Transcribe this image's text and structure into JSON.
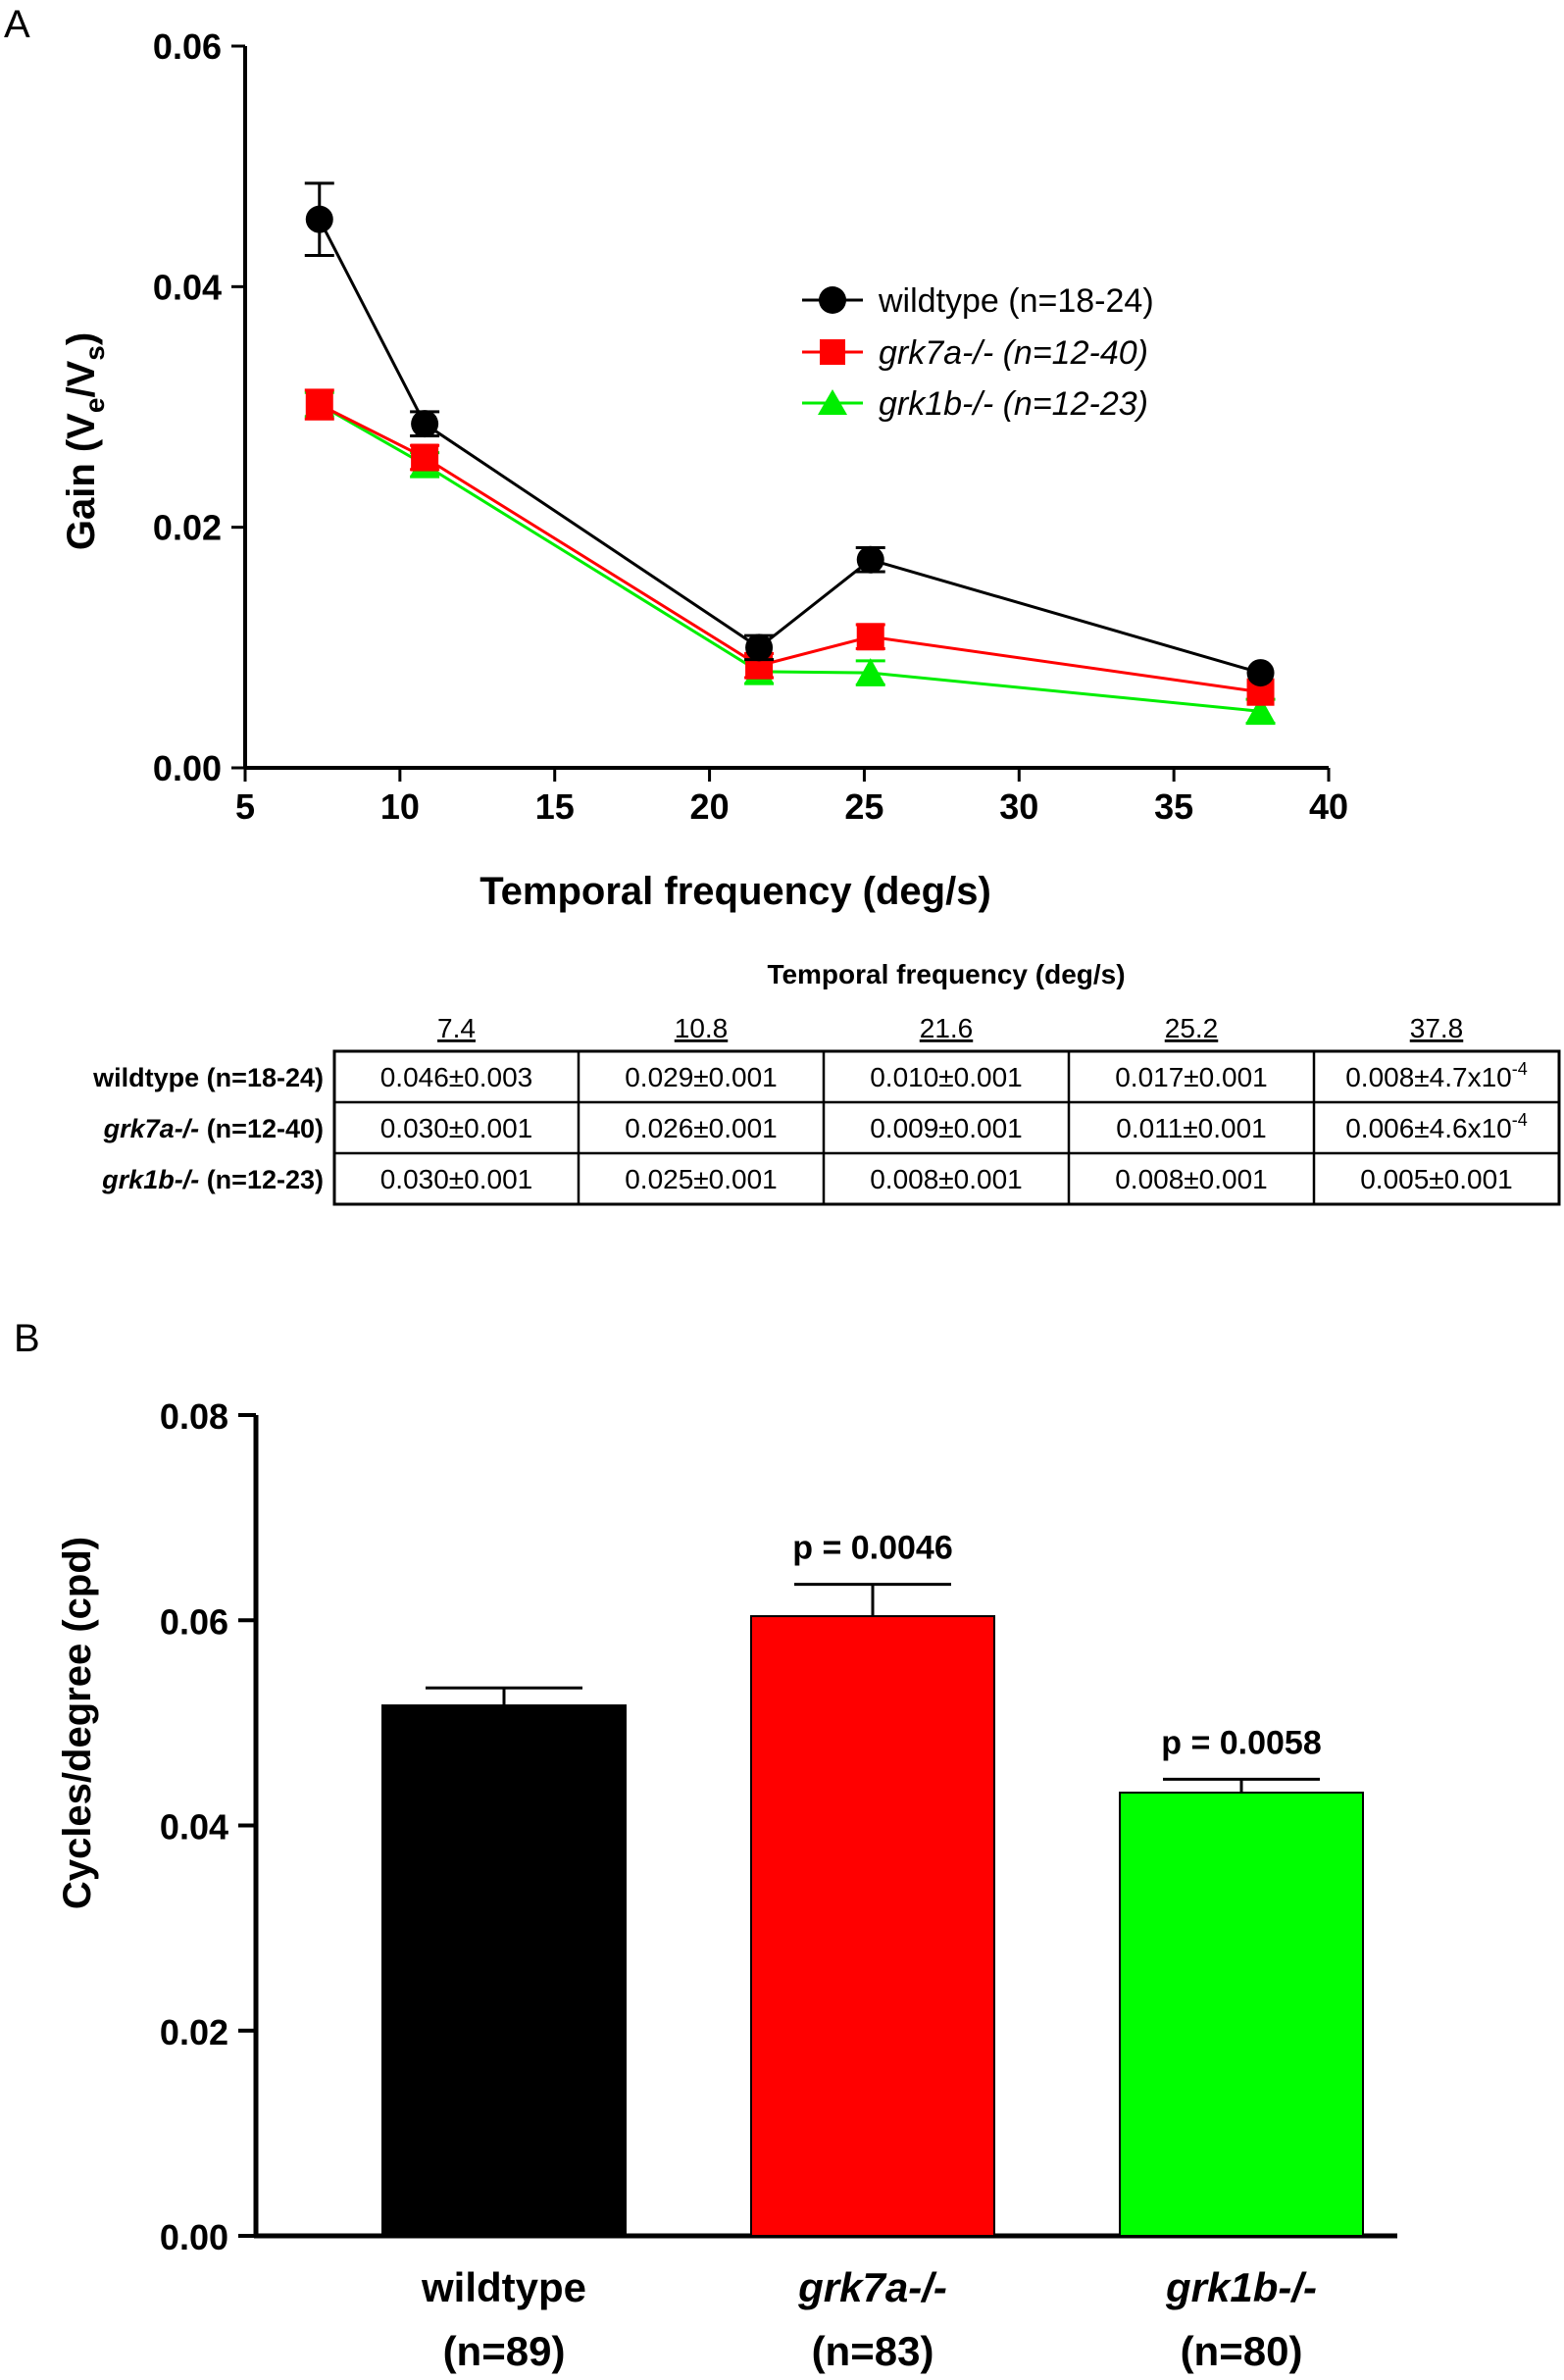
{
  "panels": {
    "a": "A",
    "b": "B"
  },
  "chart_data": [
    {
      "type": "line",
      "xlabel": "Temporal frequency (deg/s)",
      "ylabel": {
        "main": "Gain (V",
        "sub1": "e",
        "mid": "/V",
        "sub2": "s",
        "end": ")"
      },
      "xlim": [
        5,
        40
      ],
      "ylim": [
        0,
        0.06
      ],
      "xticks": [
        "5",
        "10",
        "15",
        "20",
        "25",
        "30",
        "35",
        "40"
      ],
      "yticks": [
        "0.00",
        "0.02",
        "0.04",
        "0.06"
      ],
      "x": [
        7.4,
        10.8,
        21.6,
        25.2,
        37.8
      ],
      "series": [
        {
          "name": "wildtype (n=18-24)",
          "name_italic": "",
          "name_rest": "",
          "marker": "circle",
          "color": "#000000",
          "values": [
            0.0456,
            0.0286,
            0.01,
            0.0173,
            0.0079
          ],
          "errors": [
            0.003,
            0.001,
            0.001,
            0.001,
            0.00047
          ]
        },
        {
          "name": "",
          "name_italic": "grk7a-/- (n=12-40)",
          "name_rest": "",
          "marker": "square",
          "color": "#ff0000",
          "values": [
            0.0302,
            0.0258,
            0.0085,
            0.0109,
            0.0063
          ],
          "errors": [
            0.0012,
            0.001,
            0.001,
            0.001,
            0.00046
          ]
        },
        {
          "name": "",
          "name_italic": "grk1b-/- (n=12-23)",
          "name_rest": "",
          "marker": "triangle",
          "color": "#00ee00",
          "values": [
            0.0302,
            0.0252,
            0.008,
            0.0079,
            0.0047
          ],
          "errors": [
            0.001,
            0.001,
            0.001,
            0.001,
            0.001
          ]
        }
      ]
    },
    {
      "type": "table",
      "title": "Temporal frequency (deg/s)",
      "columns": [
        "7.4",
        "10.8",
        "21.6",
        "25.2",
        "37.8"
      ],
      "rows": [
        {
          "label_italic": "",
          "label_bold": "wildtype (n=18-24)",
          "cells": [
            "0.046±0.003",
            "0.029±0.001",
            "0.010±0.001",
            "0.017±0.001",
            "0.008±4.7x10"
          ],
          "last_sup": "-4"
        },
        {
          "label_italic": "grk7a-/-",
          "label_bold": " (n=12-40)",
          "cells": [
            "0.030±0.001",
            "0.026±0.001",
            "0.009±0.001",
            "0.011±0.001",
            "0.006±4.6x10"
          ],
          "last_sup": "-4"
        },
        {
          "label_italic": "grk1b-/-",
          "label_bold": " (n=12-23)",
          "cells": [
            "0.030±0.001",
            "0.025±0.001",
            "0.008±0.001",
            "0.008±0.001",
            "0.005±0.001"
          ],
          "last_sup": ""
        }
      ]
    },
    {
      "type": "bar",
      "ylabel": "Cycles/degree (cpd)",
      "ylim": [
        0,
        0.08
      ],
      "yticks": [
        "0.00",
        "0.02",
        "0.04",
        "0.06",
        "0.08"
      ],
      "bars": [
        {
          "label": "wildtype",
          "label_italic": false,
          "n": "(n=89)",
          "value": 0.0517,
          "error": 0.0017,
          "color": "#000000",
          "pvalue": ""
        },
        {
          "label": "grk7a-/-",
          "label_italic": true,
          "n": "(n=83)",
          "value": 0.0604,
          "error": 0.0031,
          "color": "#ff0000",
          "pvalue": "p = 0.0046"
        },
        {
          "label": "grk1b-/-",
          "label_italic": true,
          "n": "(n=80)",
          "value": 0.0432,
          "error": 0.0013,
          "color": "#00ff00",
          "pvalue": "p = 0.0058"
        }
      ]
    }
  ]
}
